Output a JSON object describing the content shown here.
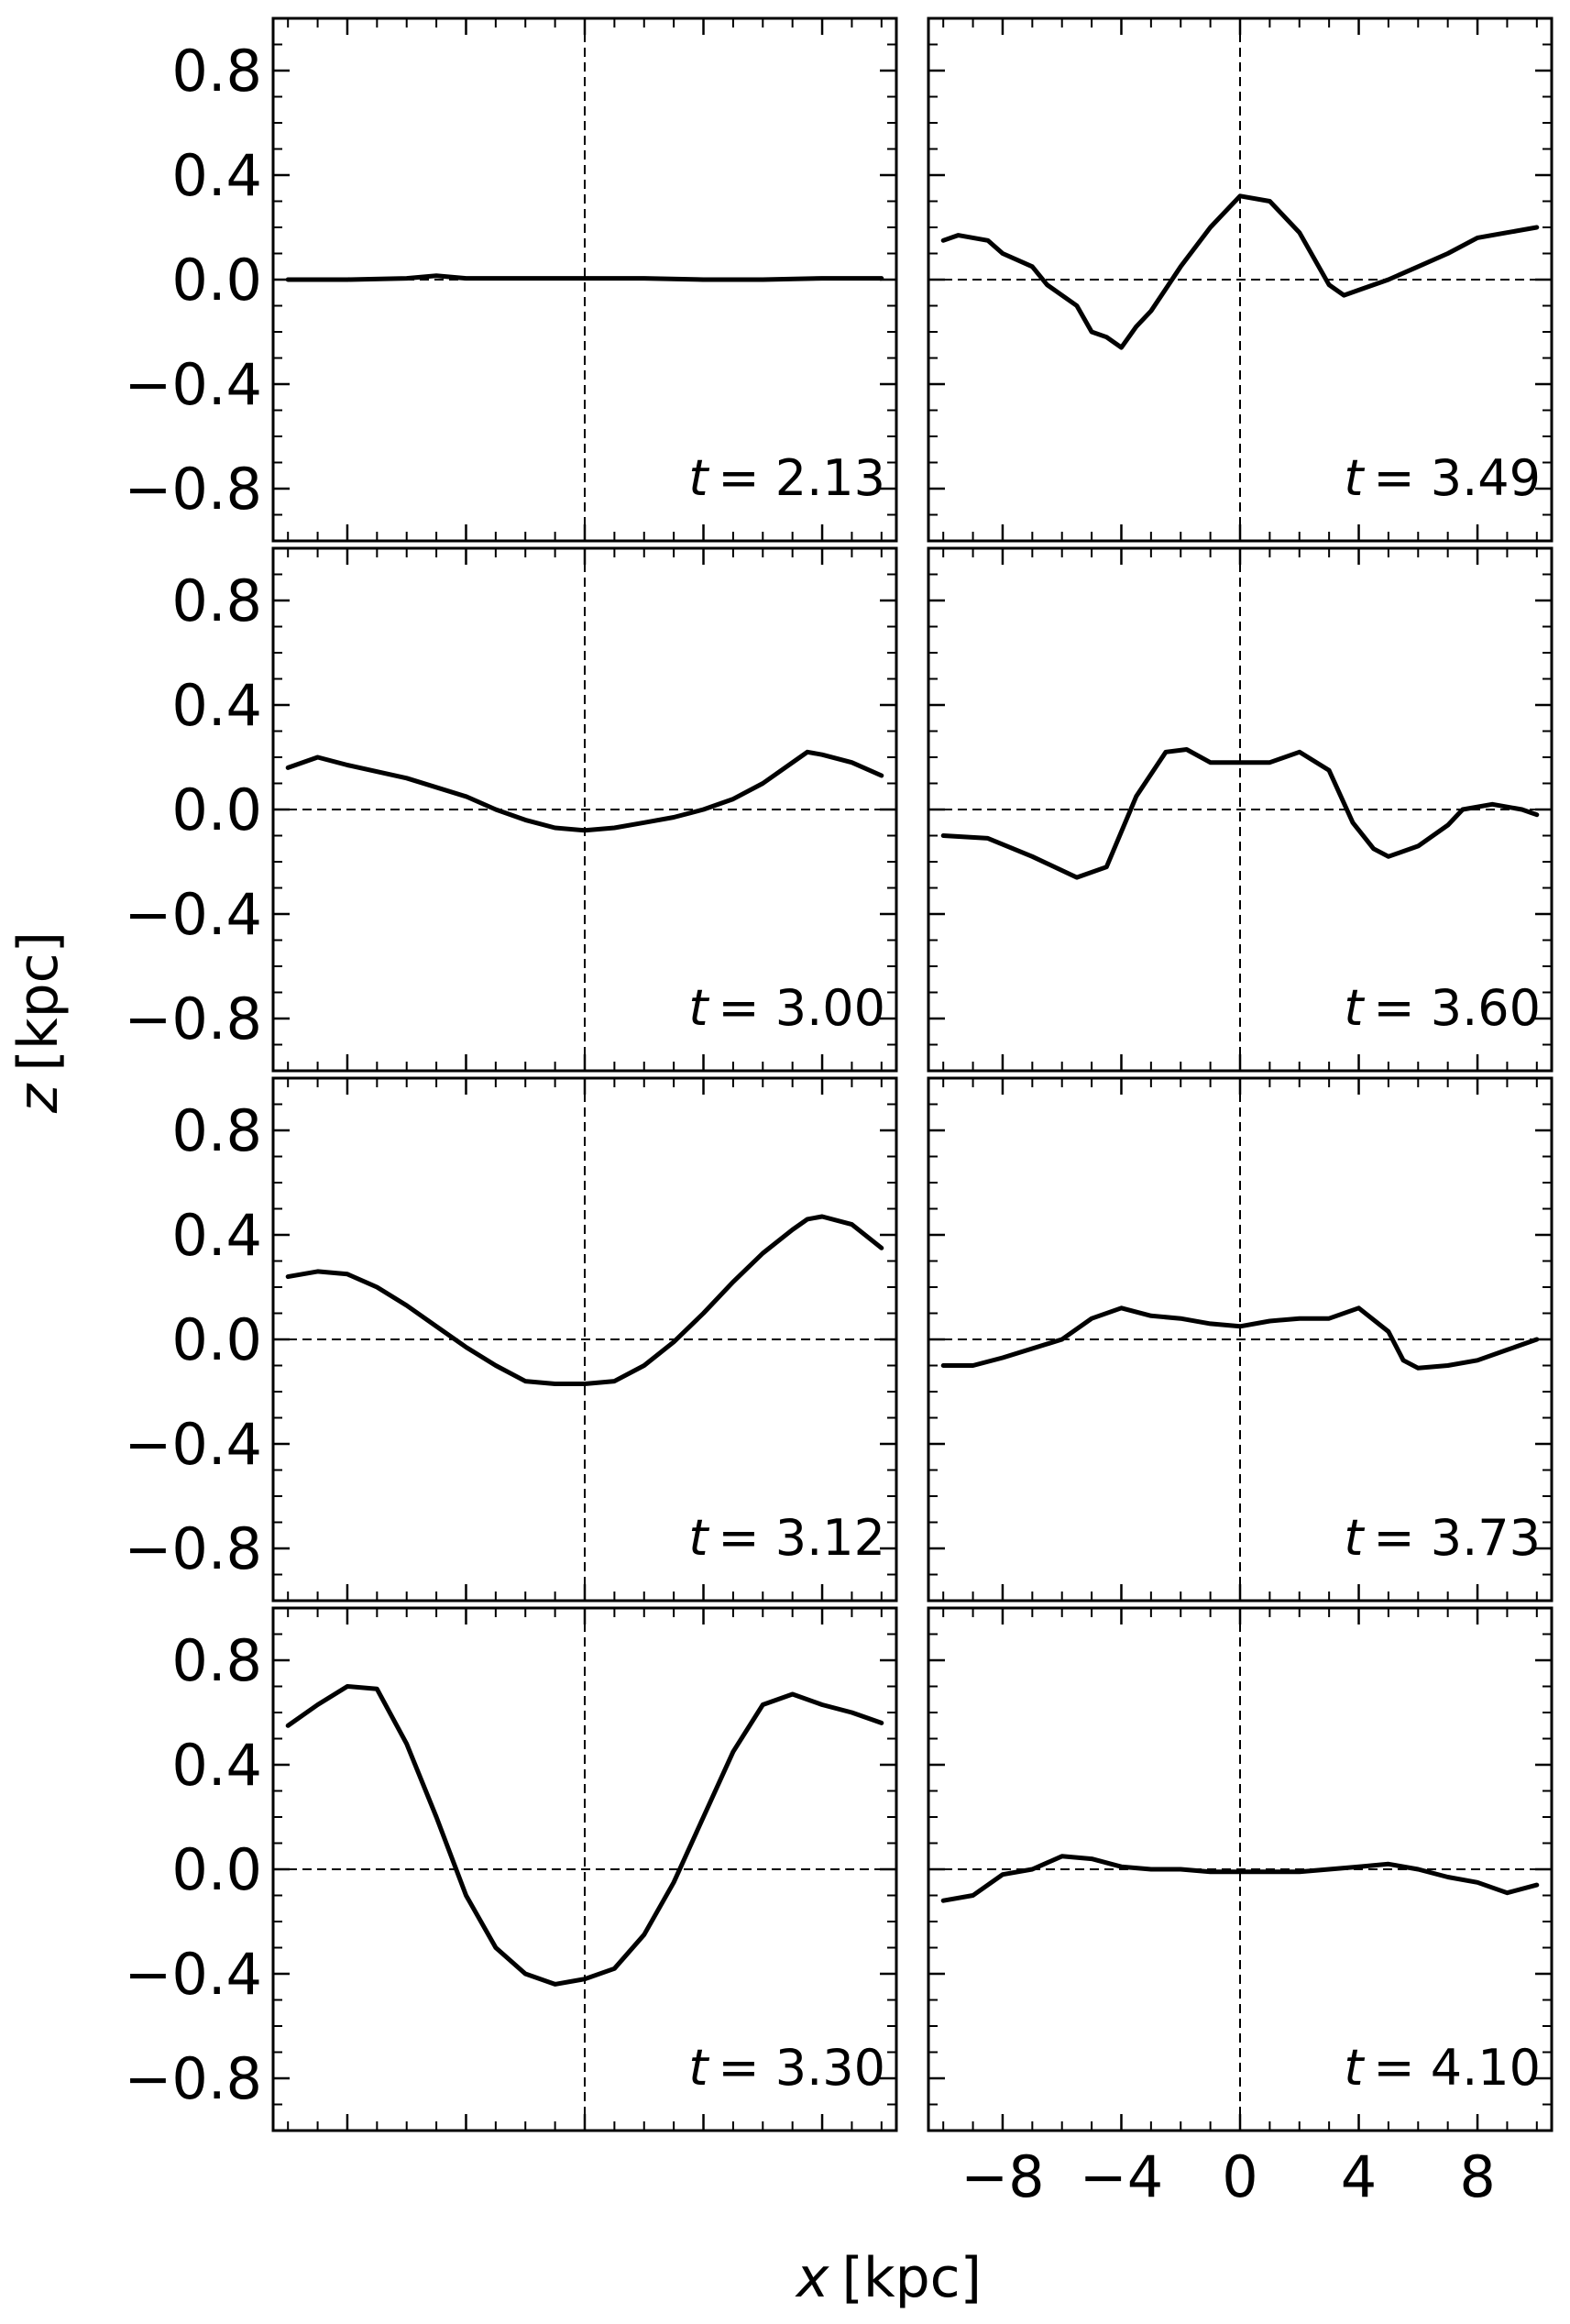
{
  "figure": {
    "xlabel_var": "x",
    "xlabel_unit": "[kpc]",
    "ylabel_var": "z",
    "ylabel_unit": "[kpc]",
    "line_color": "#000000"
  },
  "chart_data": [
    {
      "type": "line",
      "panel": "left-1",
      "annotation": "= 2.13",
      "annotation_var": "t",
      "xlim": [
        -10.5,
        10.5
      ],
      "ylim": [
        -1.0,
        1.0
      ],
      "xticks": [
        -8,
        -4,
        0,
        4,
        8
      ],
      "yticks": [
        0.8,
        0.4,
        0.0,
        -0.4,
        -0.8
      ],
      "xticklabels": [
        "−8",
        "−4",
        "0",
        "4",
        "8"
      ],
      "yticklabels": [
        "0.8",
        "0.4",
        "0.0",
        "−0.4",
        "−0.8"
      ],
      "show_xticklabels": false,
      "show_yticklabels": true,
      "x": [
        -10,
        -8,
        -6,
        -5,
        -4,
        -2,
        0,
        2,
        4,
        6,
        8,
        10
      ],
      "y": [
        0.0,
        0.0,
        0.005,
        0.015,
        0.005,
        0.005,
        0.005,
        0.005,
        0.0,
        0.0,
        0.005,
        0.005
      ]
    },
    {
      "type": "line",
      "panel": "right-1",
      "annotation": "= 3.49",
      "annotation_var": "t",
      "xlim": [
        -10.5,
        10.5
      ],
      "ylim": [
        -1.0,
        1.0
      ],
      "xticks": [
        -8,
        -4,
        0,
        4,
        8
      ],
      "yticks": [
        0.8,
        0.4,
        0.0,
        -0.4,
        -0.8
      ],
      "xticklabels": [
        "−8",
        "−4",
        "0",
        "4",
        "8"
      ],
      "yticklabels": [
        "0.8",
        "0.4",
        "0.0",
        "−0.4",
        "−0.8"
      ],
      "show_xticklabels": false,
      "show_yticklabels": false,
      "x": [
        -10,
        -9.5,
        -8.5,
        -8,
        -7,
        -6.5,
        -5.5,
        -5,
        -4.5,
        -4,
        -3.5,
        -3,
        -2,
        -1,
        0,
        1,
        2,
        3,
        3.5,
        4,
        5,
        6,
        7,
        8,
        9,
        10
      ],
      "y": [
        0.15,
        0.17,
        0.15,
        0.1,
        0.05,
        -0.02,
        -0.1,
        -0.2,
        -0.22,
        -0.26,
        -0.18,
        -0.12,
        0.05,
        0.2,
        0.32,
        0.3,
        0.18,
        -0.02,
        -0.06,
        -0.04,
        0.0,
        0.05,
        0.1,
        0.16,
        0.18,
        0.2
      ]
    },
    {
      "type": "line",
      "panel": "left-2",
      "annotation": "= 3.00",
      "annotation_var": "t",
      "xlim": [
        -10.5,
        10.5
      ],
      "ylim": [
        -1.0,
        1.0
      ],
      "xticks": [
        -8,
        -4,
        0,
        4,
        8
      ],
      "yticks": [
        0.8,
        0.4,
        0.0,
        -0.4,
        -0.8
      ],
      "xticklabels": [
        "−8",
        "−4",
        "0",
        "4",
        "8"
      ],
      "yticklabels": [
        "0.8",
        "0.4",
        "0.0",
        "−0.4",
        "−0.8"
      ],
      "show_xticklabels": false,
      "show_yticklabels": true,
      "x": [
        -10,
        -9,
        -8,
        -6,
        -4,
        -3,
        -2,
        -1,
        0,
        1,
        2,
        3,
        4,
        5,
        6,
        7,
        7.5,
        8,
        9,
        10
      ],
      "y": [
        0.16,
        0.2,
        0.17,
        0.12,
        0.05,
        0.0,
        -0.04,
        -0.07,
        -0.08,
        -0.07,
        -0.05,
        -0.03,
        0.0,
        0.04,
        0.1,
        0.18,
        0.22,
        0.21,
        0.18,
        0.13
      ]
    },
    {
      "type": "line",
      "panel": "right-2",
      "annotation": "= 3.60",
      "annotation_var": "t",
      "xlim": [
        -10.5,
        10.5
      ],
      "ylim": [
        -1.0,
        1.0
      ],
      "xticks": [
        -8,
        -4,
        0,
        4,
        8
      ],
      "yticks": [
        0.8,
        0.4,
        0.0,
        -0.4,
        -0.8
      ],
      "xticklabels": [
        "−8",
        "−4",
        "0",
        "4",
        "8"
      ],
      "yticklabels": [
        "0.8",
        "0.4",
        "0.0",
        "−0.4",
        "−0.8"
      ],
      "show_xticklabels": false,
      "show_yticklabels": false,
      "x": [
        -10,
        -8.5,
        -7,
        -5.5,
        -4.5,
        -3.5,
        -2.5,
        -1.8,
        -1,
        0,
        1,
        2,
        3,
        3.8,
        4.5,
        5,
        6,
        7,
        7.5,
        8.5,
        9.5,
        10
      ],
      "y": [
        -0.1,
        -0.11,
        -0.18,
        -0.26,
        -0.22,
        0.05,
        0.22,
        0.23,
        0.18,
        0.18,
        0.18,
        0.22,
        0.15,
        -0.05,
        -0.15,
        -0.18,
        -0.14,
        -0.06,
        0.0,
        0.02,
        0.0,
        -0.02
      ]
    },
    {
      "type": "line",
      "panel": "left-3",
      "annotation": "= 3.12",
      "annotation_var": "t",
      "xlim": [
        -10.5,
        10.5
      ],
      "ylim": [
        -1.0,
        1.0
      ],
      "xticks": [
        -8,
        -4,
        0,
        4,
        8
      ],
      "yticks": [
        0.8,
        0.4,
        0.0,
        -0.4,
        -0.8
      ],
      "xticklabels": [
        "−8",
        "−4",
        "0",
        "4",
        "8"
      ],
      "yticklabels": [
        "0.8",
        "0.4",
        "0.0",
        "−0.4",
        "−0.8"
      ],
      "show_xticklabels": false,
      "show_yticklabels": true,
      "x": [
        -10,
        -9,
        -8,
        -7,
        -6,
        -5,
        -4,
        -3,
        -2,
        -1,
        0,
        1,
        2,
        3,
        4,
        5,
        6,
        7,
        7.5,
        8,
        9,
        10
      ],
      "y": [
        0.24,
        0.26,
        0.25,
        0.2,
        0.13,
        0.05,
        -0.03,
        -0.1,
        -0.16,
        -0.17,
        -0.17,
        -0.16,
        -0.1,
        -0.01,
        0.1,
        0.22,
        0.33,
        0.42,
        0.46,
        0.47,
        0.44,
        0.35
      ]
    },
    {
      "type": "line",
      "panel": "right-3",
      "annotation": "= 3.73",
      "annotation_var": "t",
      "xlim": [
        -10.5,
        10.5
      ],
      "ylim": [
        -1.0,
        1.0
      ],
      "xticks": [
        -8,
        -4,
        0,
        4,
        8
      ],
      "yticks": [
        0.8,
        0.4,
        0.0,
        -0.4,
        -0.8
      ],
      "xticklabels": [
        "−8",
        "−4",
        "0",
        "4",
        "8"
      ],
      "yticklabels": [
        "0.8",
        "0.4",
        "0.0",
        "−0.4",
        "−0.8"
      ],
      "show_xticklabels": false,
      "show_yticklabels": false,
      "x": [
        -10,
        -9,
        -8,
        -6,
        -5,
        -4,
        -3,
        -2,
        -1,
        0,
        1,
        2,
        3,
        4,
        5,
        5.5,
        6,
        7,
        8,
        9,
        10
      ],
      "y": [
        -0.1,
        -0.1,
        -0.07,
        0.0,
        0.08,
        0.12,
        0.09,
        0.08,
        0.06,
        0.05,
        0.07,
        0.08,
        0.08,
        0.12,
        0.03,
        -0.08,
        -0.11,
        -0.1,
        -0.08,
        -0.04,
        0.0
      ]
    },
    {
      "type": "line",
      "panel": "left-4",
      "annotation": "= 3.30",
      "annotation_var": "t",
      "xlim": [
        -10.5,
        10.5
      ],
      "ylim": [
        -1.0,
        1.0
      ],
      "xticks": [
        -8,
        -4,
        0,
        4,
        8
      ],
      "yticks": [
        0.8,
        0.4,
        0.0,
        -0.4,
        -0.8
      ],
      "xticklabels": [
        "−8",
        "−4",
        "0",
        "4",
        "8"
      ],
      "yticklabels": [
        "0.8",
        "0.4",
        "0.0",
        "−0.4",
        "−0.8"
      ],
      "show_xticklabels": false,
      "show_yticklabels": true,
      "x": [
        -10,
        -9,
        -8,
        -7,
        -6,
        -5,
        -4,
        -3,
        -2,
        -1,
        0,
        1,
        2,
        3,
        4,
        5,
        6,
        7,
        8,
        9,
        10
      ],
      "y": [
        0.55,
        0.63,
        0.7,
        0.69,
        0.48,
        0.2,
        -0.1,
        -0.3,
        -0.4,
        -0.44,
        -0.42,
        -0.38,
        -0.25,
        -0.05,
        0.2,
        0.45,
        0.63,
        0.67,
        0.63,
        0.6,
        0.56
      ]
    },
    {
      "type": "line",
      "panel": "right-4",
      "annotation": "= 4.10",
      "annotation_var": "t",
      "xlim": [
        -10.5,
        10.5
      ],
      "ylim": [
        -1.0,
        1.0
      ],
      "xticks": [
        -8,
        -4,
        0,
        4,
        8
      ],
      "yticks": [
        0.8,
        0.4,
        0.0,
        -0.4,
        -0.8
      ],
      "xticklabels": [
        "−8",
        "−4",
        "0",
        "4",
        "8"
      ],
      "yticklabels": [
        "0.8",
        "0.4",
        "0.0",
        "−0.4",
        "−0.8"
      ],
      "show_xticklabels": true,
      "show_yticklabels": false,
      "x": [
        -10,
        -9,
        -8,
        -7,
        -6,
        -5,
        -4,
        -3,
        -2,
        -1,
        0,
        1,
        2,
        3,
        4,
        5,
        6,
        7,
        8,
        9,
        10
      ],
      "y": [
        -0.12,
        -0.1,
        -0.02,
        0.0,
        0.05,
        0.04,
        0.01,
        0.0,
        0.0,
        -0.01,
        -0.01,
        -0.01,
        -0.01,
        0.0,
        0.01,
        0.02,
        0.0,
        -0.03,
        -0.05,
        -0.09,
        -0.06
      ]
    }
  ]
}
